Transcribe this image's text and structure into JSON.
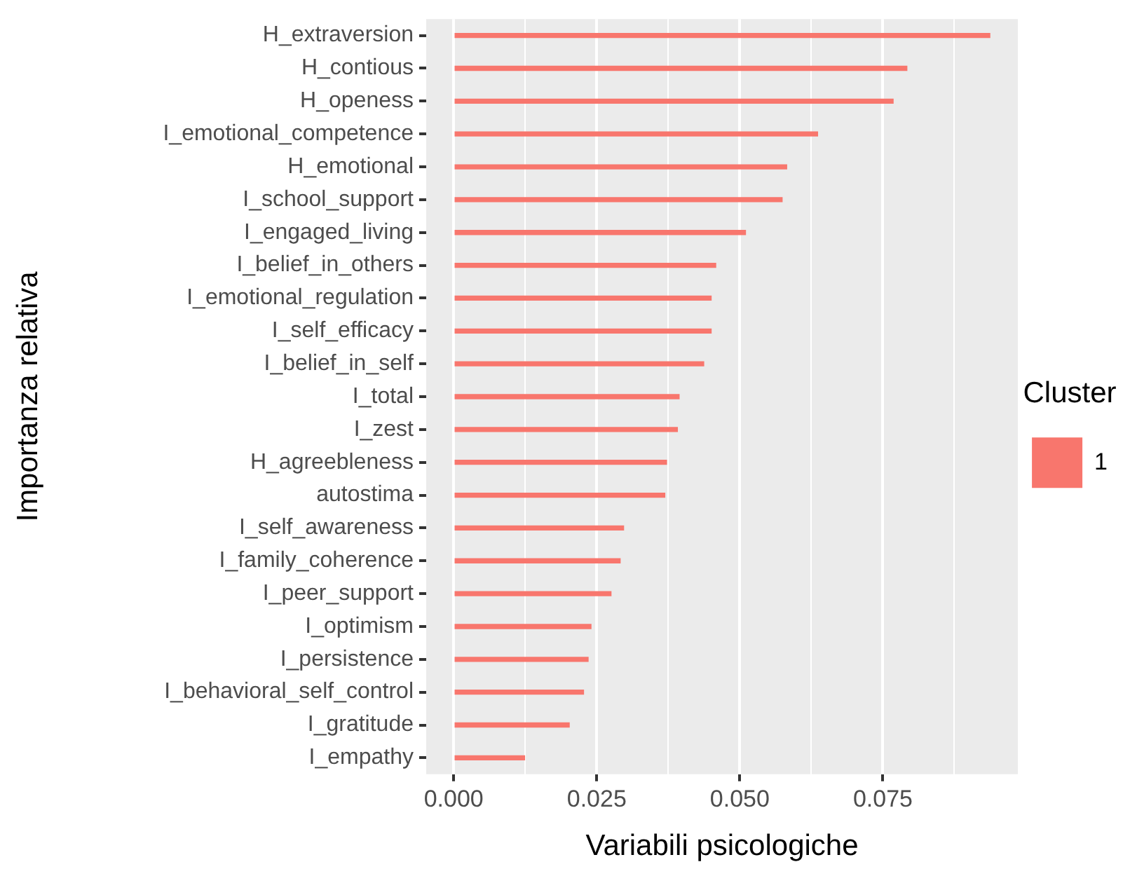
{
  "chart_data": {
    "type": "bar",
    "orientation": "horizontal",
    "xlabel": "Variabili psicologiche",
    "ylabel": "Importanza relativa",
    "legend_title": "Cluster",
    "legend": "right",
    "grid": "x",
    "categories": [
      "H_extraversion",
      "H_contious",
      "H_openess",
      "I_emotional_competence",
      "H_emotional",
      "I_school_support",
      "I_engaged_living",
      "I_belief_in_others",
      "I_emotional_regulation",
      "I_self_efficacy",
      "I_belief_in_self",
      "I_total",
      "I_zest",
      "H_agreebleness",
      "autostima",
      "I_self_awareness",
      "I_family_coherence",
      "I_peer_support",
      "I_optimism",
      "I_persistence",
      "I_behavioral_self_control",
      "I_gratitude",
      "I_empathy"
    ],
    "series": [
      {
        "name": "1",
        "color": "#f8766d",
        "values": [
          0.0937,
          0.0792,
          0.0768,
          0.0636,
          0.0582,
          0.0574,
          0.051,
          0.0458,
          0.045,
          0.045,
          0.0437,
          0.0394,
          0.0391,
          0.0372,
          0.0369,
          0.0297,
          0.0291,
          0.0275,
          0.024,
          0.0235,
          0.0227,
          0.0202,
          0.0124
        ]
      }
    ],
    "xlim": [
      -0.0048,
      0.0986
    ],
    "xticks": [
      "0.000",
      {
        "value": 0.0125,
        "label": null
      },
      {
        "value": 0.025,
        "label": "0.025"
      },
      {
        "value": 0.0375,
        "label": null
      },
      {
        "value": 0.05,
        "label": "0.050"
      },
      {
        "value": 0.0625,
        "label": null
      },
      {
        "value": 0.075,
        "label": "0.075"
      },
      {
        "value": 0.0875,
        "label": null
      }
    ]
  }
}
